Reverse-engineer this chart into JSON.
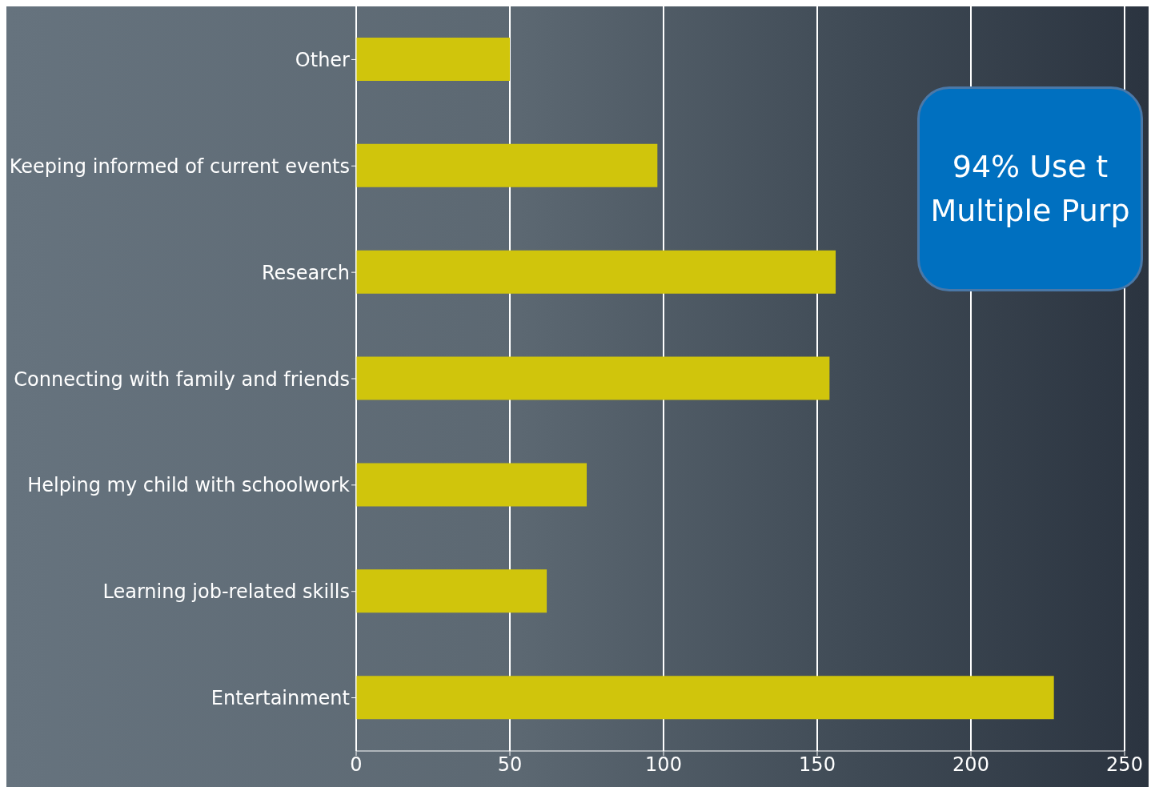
{
  "chart_data": {
    "type": "bar",
    "orientation": "horizontal",
    "categories": [
      "Other",
      "Keeping informed of current events",
      "Research",
      "Connecting with family and friends",
      "Helping my child with schoolwork",
      "Learning job-related skills",
      "Entertainment"
    ],
    "values": [
      50,
      98,
      156,
      154,
      75,
      62,
      227
    ],
    "color": "#d0c50c",
    "xlim": [
      0,
      250
    ],
    "xticks": [
      0,
      50,
      100,
      150,
      200,
      250
    ],
    "grid": "x",
    "annotations": [
      "94% Use t\nMultiple Purp"
    ]
  }
}
